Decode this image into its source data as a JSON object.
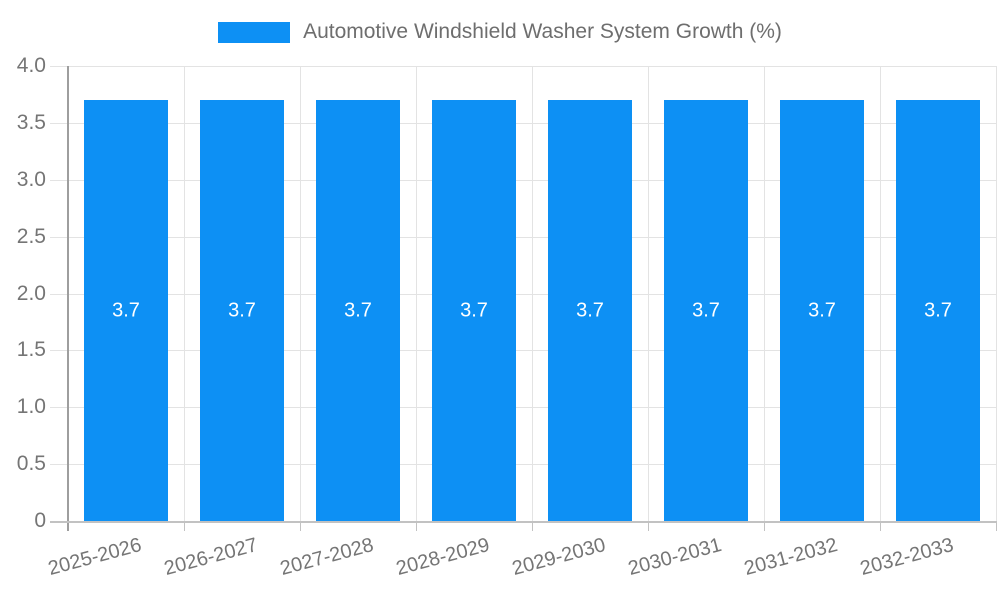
{
  "chart_data": {
    "type": "bar",
    "title": "Automotive Windshield Washer System Growth (%)",
    "categories": [
      "2025-2026",
      "2026-2027",
      "2027-2028",
      "2028-2029",
      "2029-2030",
      "2030-2031",
      "2031-2032",
      "2032-2033"
    ],
    "values": [
      3.7,
      3.7,
      3.7,
      3.7,
      3.7,
      3.7,
      3.7,
      3.7
    ],
    "value_labels": [
      "3.7",
      "3.7",
      "3.7",
      "3.7",
      "3.7",
      "3.7",
      "3.7",
      "3.7"
    ],
    "xlabel": "",
    "ylabel": "",
    "ylim": [
      0,
      4.0
    ],
    "yticks": [
      {
        "value": 0,
        "label": "0"
      },
      {
        "value": 0.5,
        "label": "0.5"
      },
      {
        "value": 1,
        "label": "1.0"
      },
      {
        "value": 1.5,
        "label": "1.5"
      },
      {
        "value": 2,
        "label": "2.0"
      },
      {
        "value": 2.5,
        "label": "2.5"
      },
      {
        "value": 3,
        "label": "3.0"
      },
      {
        "value": 3.5,
        "label": "3.5"
      },
      {
        "value": 4,
        "label": "4.0"
      }
    ],
    "grid": "on",
    "legend_position": "top-center",
    "value_label_position": "inside-middle"
  },
  "colors": {
    "background": "#FFFFFF",
    "bar": "#0D90F4",
    "tick_text": "#757575",
    "legend_text": "#6E6E6E",
    "grid_line": "#E3E3E3",
    "y_axis_line": "#9E9E9E",
    "x_axis_line": "#C2C2C2",
    "value_label_text": "#FFFFFF"
  }
}
